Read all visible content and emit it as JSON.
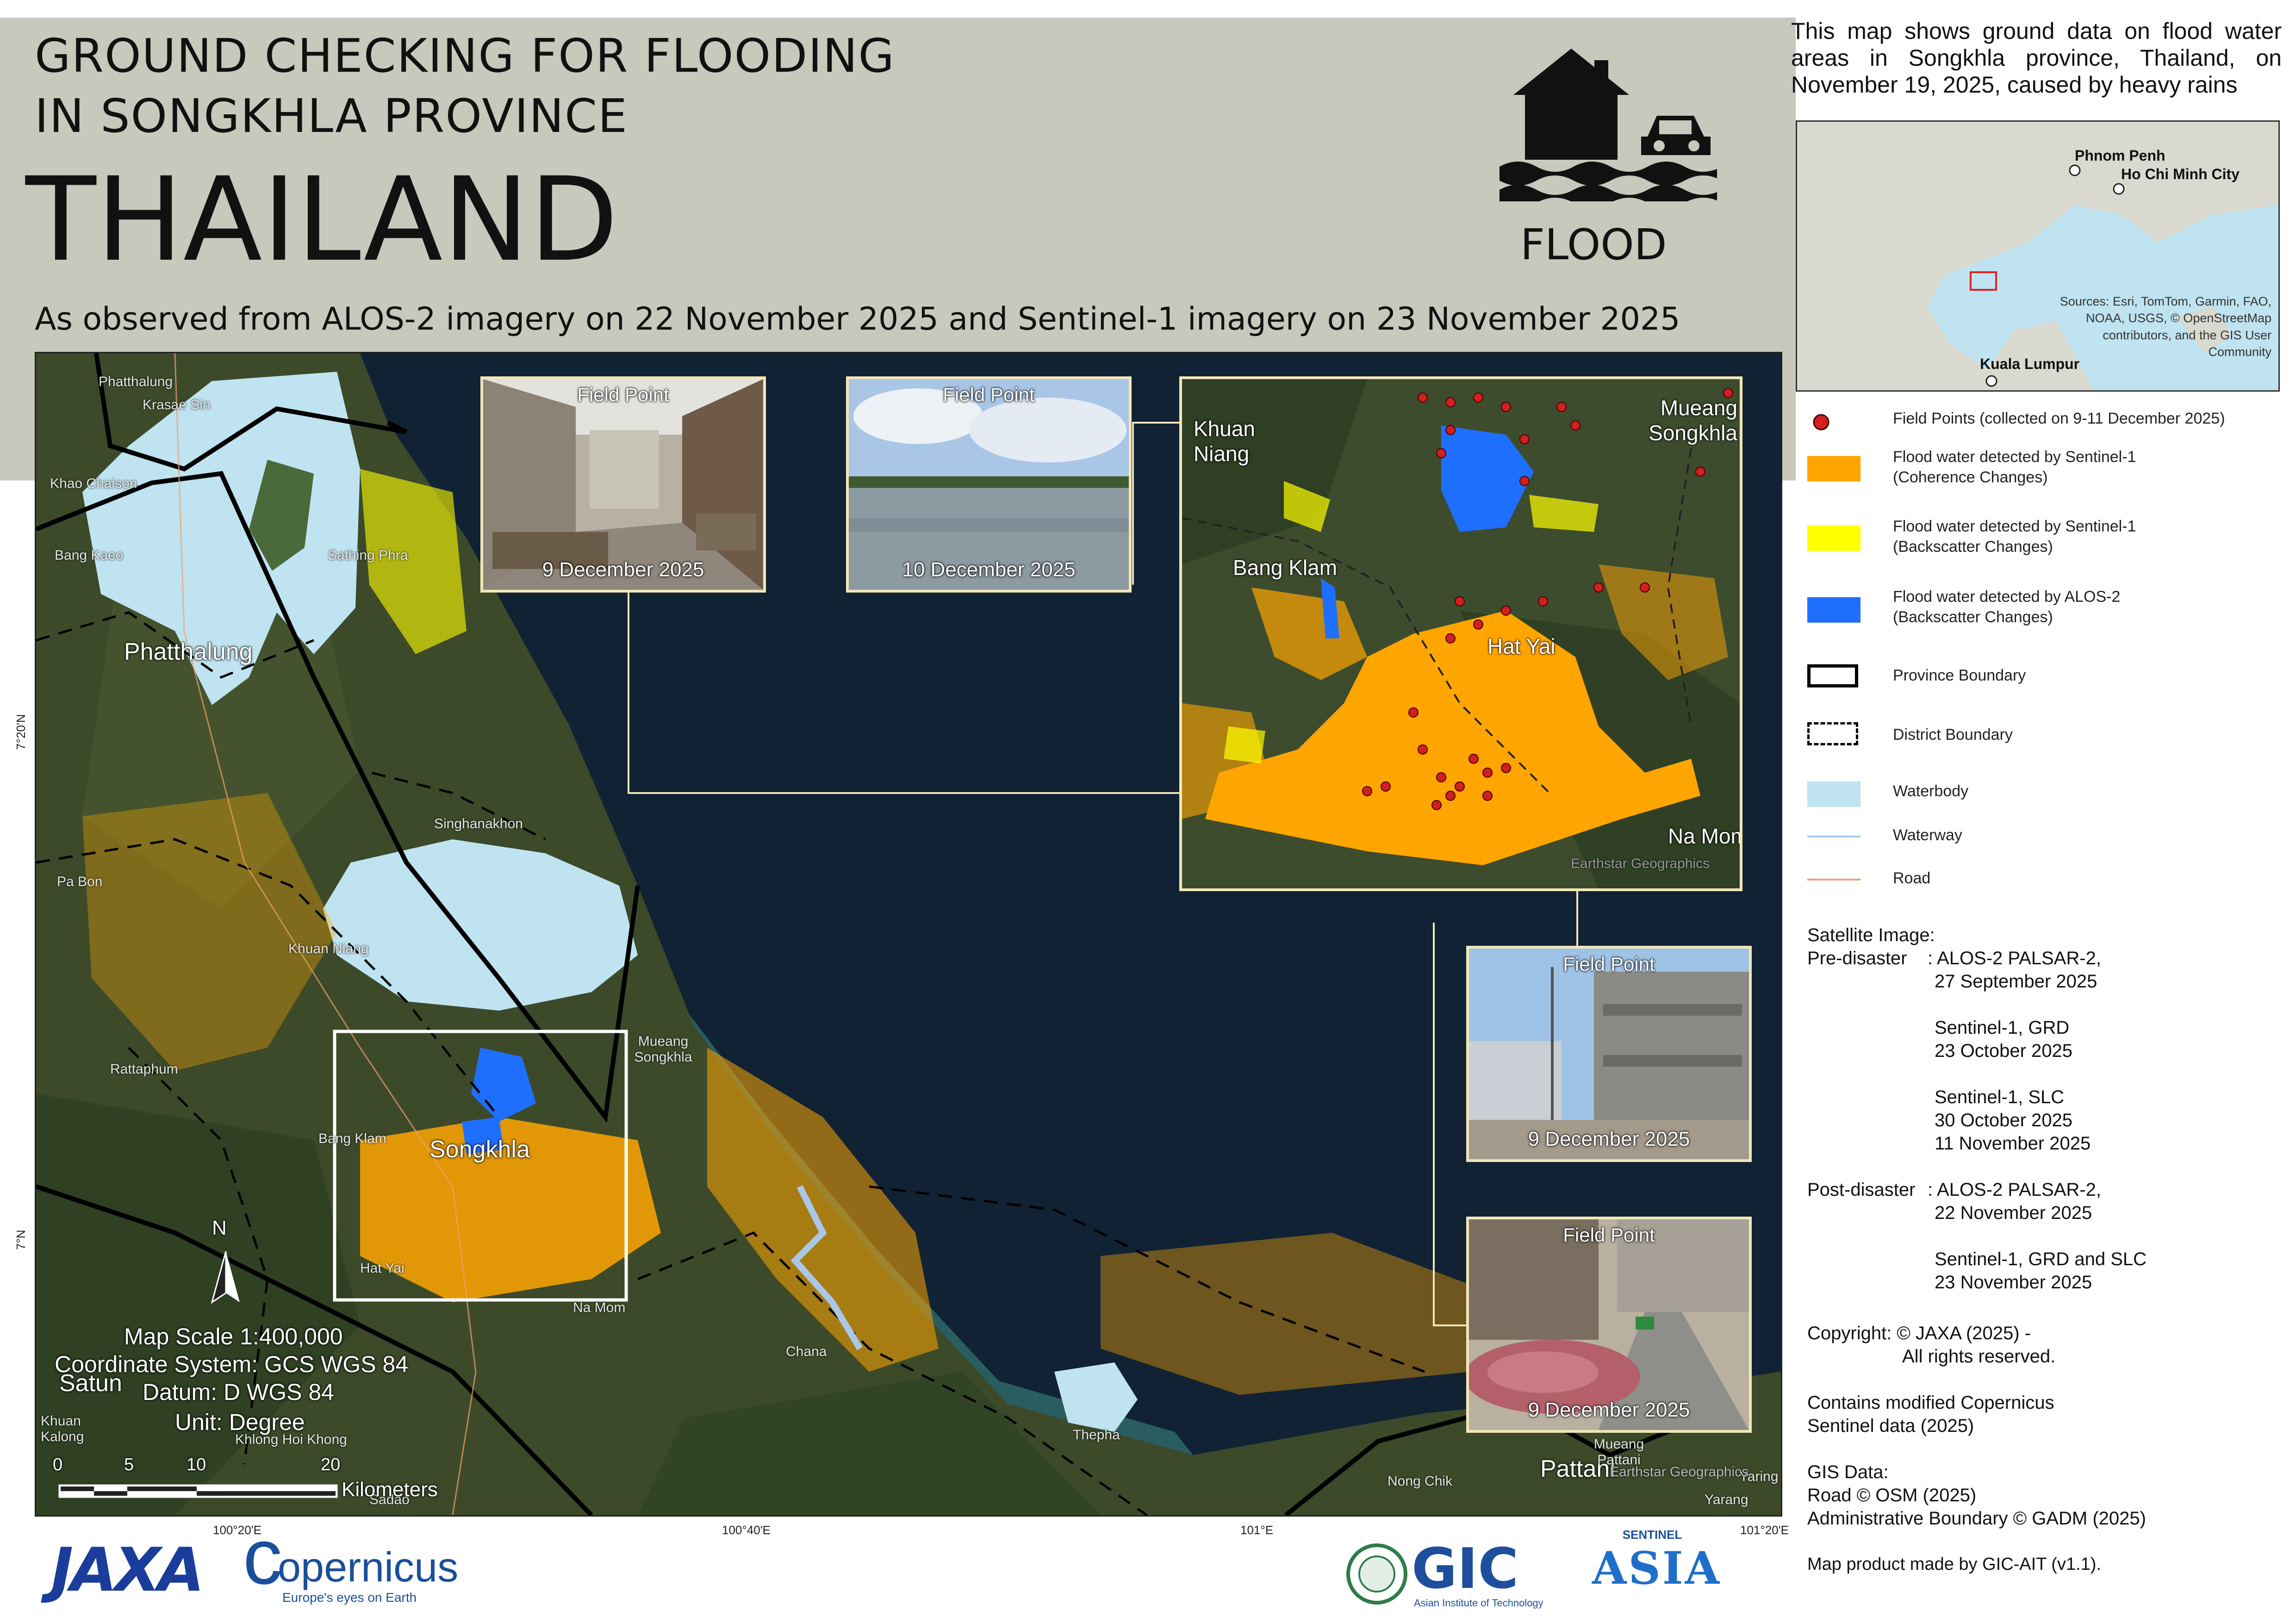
{
  "header": {
    "title_line1": "GROUND CHECKING FOR FLOODING",
    "title_line2": "IN SONGKHLA PROVINCE",
    "country": "THAILAND",
    "subtitle": "As observed from ALOS-2 imagery on 22 November 2025 and Sentinel-1 imagery on 23 November 2025",
    "icon_label": "FLOOD",
    "icon": "flood-house-car-icon"
  },
  "description": "This map shows ground data on flood water areas in Songkhla province, Thailand, on November 19, 2025, caused by heavy rains",
  "overview_map": {
    "cities": [
      "Phnom Penh",
      "Ho Chi Minh City",
      "Kuala Lumpur"
    ],
    "attribution": "Sources: Esri, TomTom, Garmin, FAO, NOAA, USGS, © OpenStreetMap contributors, and the GIS User Community"
  },
  "legend": {
    "field_points": "Field Points (collected on 9-11 December 2025)",
    "s1_coherence_1": "Flood water detected by Sentinel-1",
    "s1_coherence_2": "(Coherence Changes)",
    "s1_backscatter_1": "Flood water detected by Sentinel-1",
    "s1_backscatter_2": "(Backscatter Changes)",
    "alos_1": "Flood water detected by ALOS-2",
    "alos_2": "(Backscatter Changes)",
    "province": "Province Boundary",
    "district": "District Boundary",
    "waterbody": "Waterbody",
    "waterway": "Waterway",
    "road": "Road",
    "colors": {
      "field_point": "#d21f1f",
      "s1_coherence": "#ffa500",
      "s1_backscatter": "#ffff00",
      "alos": "#1f6fff",
      "waterbody": "#bfe3f0",
      "waterway": "#a9c8e6",
      "road": "#f0a070"
    }
  },
  "satellite_info": {
    "heading": "Satellite Image:",
    "pre_label": "Pre-disaster",
    "pre_1": ": ALOS-2 PALSAR-2,",
    "pre_1b": "27 September 2025",
    "pre_2": "Sentinel-1, GRD",
    "pre_2b": "23 October 2025",
    "pre_3": "Sentinel-1, SLC",
    "pre_3b": "30 October 2025",
    "pre_3c": "11 November 2025",
    "post_label": "Post-disaster",
    "post_1": ": ALOS-2 PALSAR-2,",
    "post_1b": "22 November 2025",
    "post_2": "Sentinel-1, GRD and SLC",
    "post_2b": "23 November 2025"
  },
  "credits": {
    "copyright_1": "Copyright: © JAXA (2025) -",
    "copyright_2": "All rights reserved.",
    "copernicus_1": "Contains modified Copernicus",
    "copernicus_2": "Sentinel data (2025)",
    "gis_heading": "GIS Data:",
    "gis_1": "Road © OSM (2025)",
    "gis_2": "Administrative Boundary © GADM (2025)",
    "made_by": "Map product made by GIC-AIT (v1.1)."
  },
  "map": {
    "province_labels": [
      "Phatthalung",
      "Songkhla",
      "Satun",
      "Pattani"
    ],
    "district_labels": [
      "Phatthalung",
      "Krasae Sin",
      "Khao Chaison",
      "Bang Kaeo",
      "Sathing Phra",
      "Singhanakhon",
      "Pa Bon",
      "Khuan Niang",
      "Rattaphum",
      "Mueang Songkhla",
      "Bang Klam",
      "Hat Yai",
      "Na Mom",
      "Khuan Kalong",
      "Khlong Hoi Khong",
      "Sadao",
      "Chana",
      "Thepha",
      "Nong Chik",
      "Mueang Pattani",
      "Yaring",
      "Yarang"
    ],
    "zoom_labels": [
      "Khuan Niang",
      "Mueang Songkhla",
      "Bang Klam",
      "Hat Yai",
      "Na Mom"
    ],
    "zoom_attribution": "Earthstar Geographics",
    "main_attribution": "Earthstar Geographics",
    "grid_lon": [
      "100°20'E",
      "100°40'E",
      "101°E",
      "101°20'E"
    ],
    "grid_lat": [
      "7°20'N",
      "7°N"
    ],
    "scale": "Map Scale 1:400,000",
    "coord_system": "Coordinate System: GCS WGS 84",
    "datum": "Datum: D WGS 84",
    "unit": "Unit: Degree",
    "scalebar_ticks": [
      "0",
      "5",
      "10",
      "20"
    ],
    "scalebar_unit": "Kilometers",
    "north": "N"
  },
  "field_photos": [
    {
      "title": "Field Point",
      "date": "9 December 2025"
    },
    {
      "title": "Field Point",
      "date": "10 December 2025"
    },
    {
      "title": "Field Point",
      "date": "9 December 2025"
    },
    {
      "title": "Field Point",
      "date": "9 December 2025"
    }
  ],
  "logos": {
    "jaxa": "JAXA",
    "copernicus": "opernicus",
    "copernicus_c": "c",
    "copernicus_tag": "Europe's eyes on Earth",
    "gic": "GIC",
    "gic_sub": "Asian Institute of Technology",
    "sentinel_asia_top": "SENTINEL",
    "sentinel_asia": "ASIA"
  }
}
